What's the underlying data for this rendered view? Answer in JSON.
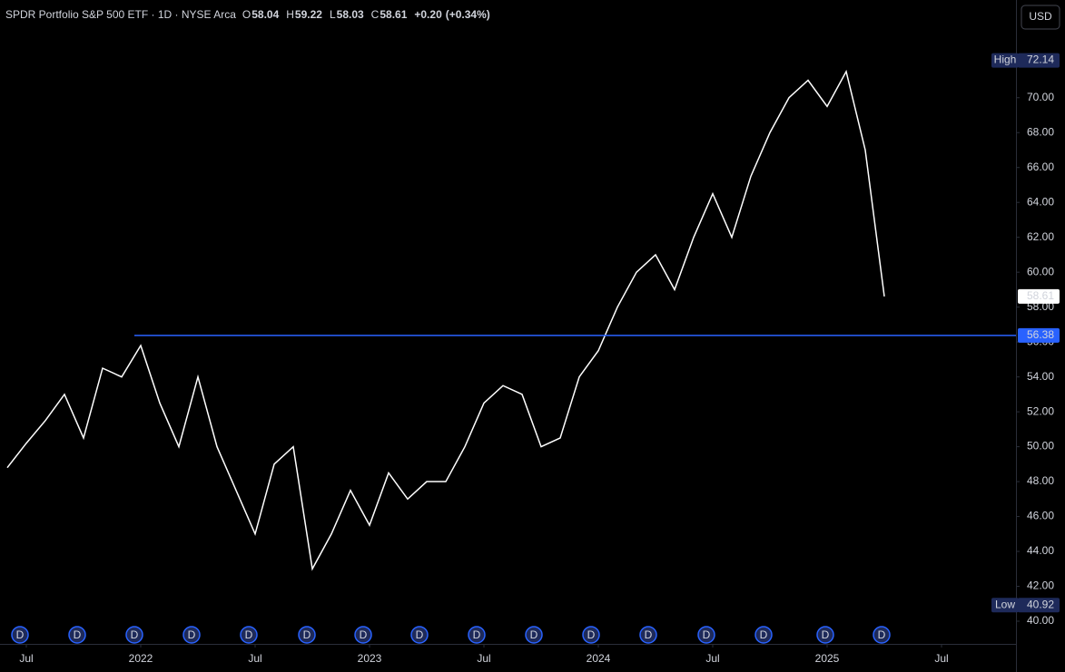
{
  "chart_data": {
    "type": "line",
    "title": "SPDR Portfolio S&P 500 ETF · 1D · NYSE Arca",
    "ohlc_header": [
      {
        "key": "O",
        "value": 58.04
      },
      {
        "key": "H",
        "value": 59.22
      },
      {
        "key": "L",
        "value": 58.03
      },
      {
        "key": "C",
        "value": 58.61
      }
    ],
    "change": {
      "value": 0.2,
      "label": "+0.20"
    },
    "change_pct": {
      "value": 0.34,
      "label": "(+0.34%)"
    },
    "currency": "USD",
    "x": [
      "2021-06",
      "2021-07",
      "2021-08",
      "2021-09",
      "2021-10",
      "2021-11",
      "2021-12",
      "2022-01",
      "2022-02",
      "2022-03",
      "2022-04",
      "2022-05",
      "2022-06",
      "2022-07",
      "2022-08",
      "2022-09",
      "2022-10",
      "2022-11",
      "2022-12",
      "2023-01",
      "2023-02",
      "2023-03",
      "2023-04",
      "2023-05",
      "2023-06",
      "2023-07",
      "2023-08",
      "2023-09",
      "2023-10",
      "2023-11",
      "2023-12",
      "2024-01",
      "2024-02",
      "2024-03",
      "2024-04",
      "2024-05",
      "2024-06",
      "2024-07",
      "2024-08",
      "2024-09",
      "2024-10",
      "2024-11",
      "2024-12",
      "2025-01",
      "2025-02",
      "2025-03",
      "2025-04"
    ],
    "series": [
      {
        "color": "#ffffff",
        "values": [
          48.8,
          50.2,
          51.5,
          53.0,
          50.5,
          54.5,
          54.0,
          55.8,
          52.5,
          50.0,
          54.0,
          50.0,
          47.5,
          45.0,
          49.0,
          50.0,
          43.0,
          45.0,
          47.5,
          45.5,
          48.5,
          47.0,
          48.0,
          48.0,
          50.0,
          52.5,
          53.5,
          53.0,
          50.0,
          50.5,
          54.0,
          55.5,
          58.0,
          60.0,
          61.0,
          59.0,
          62.0,
          64.5,
          62.0,
          65.5,
          68.0,
          70.0,
          71.0,
          69.5,
          71.5,
          67.0,
          58.61
        ]
      }
    ],
    "ylim": [
      38.7,
      75.6
    ],
    "yticks": [
      {
        "value": 40,
        "label": "40.00"
      },
      {
        "value": 42,
        "label": "42.00"
      },
      {
        "value": 44,
        "label": "44.00"
      },
      {
        "value": 46,
        "label": "46.00"
      },
      {
        "value": 48,
        "label": "48.00"
      },
      {
        "value": 50,
        "label": "50.00"
      },
      {
        "value": 52,
        "label": "52.00"
      },
      {
        "value": 54,
        "label": "54.00"
      },
      {
        "value": 56,
        "label": "56.00"
      },
      {
        "value": 58,
        "label": "58.00"
      },
      {
        "value": 60,
        "label": "60.00"
      },
      {
        "value": 62,
        "label": "62.00"
      },
      {
        "value": 64,
        "label": "64.00"
      },
      {
        "value": 66,
        "label": "66.00"
      },
      {
        "value": 68,
        "label": "68.00"
      },
      {
        "value": 70,
        "label": "70.00"
      }
    ],
    "xticks": [
      {
        "value": "2021-07",
        "label": "Jul"
      },
      {
        "value": "2022-01",
        "label": "2022"
      },
      {
        "value": "2022-07",
        "label": "Jul"
      },
      {
        "value": "2023-01",
        "label": "2023"
      },
      {
        "value": "2023-07",
        "label": "Jul"
      },
      {
        "value": "2024-01",
        "label": "2024"
      },
      {
        "value": "2024-07",
        "label": "Jul"
      },
      {
        "value": "2025-01",
        "label": "2025"
      },
      {
        "value": "2025-07",
        "label": "Jul"
      }
    ],
    "horizontal_line": {
      "value": 56.38,
      "color": "#2962ff"
    },
    "high": {
      "label": "High",
      "value": 72.14
    },
    "low": {
      "label": "Low",
      "value": 40.92
    },
    "dividend_label": "D"
  }
}
